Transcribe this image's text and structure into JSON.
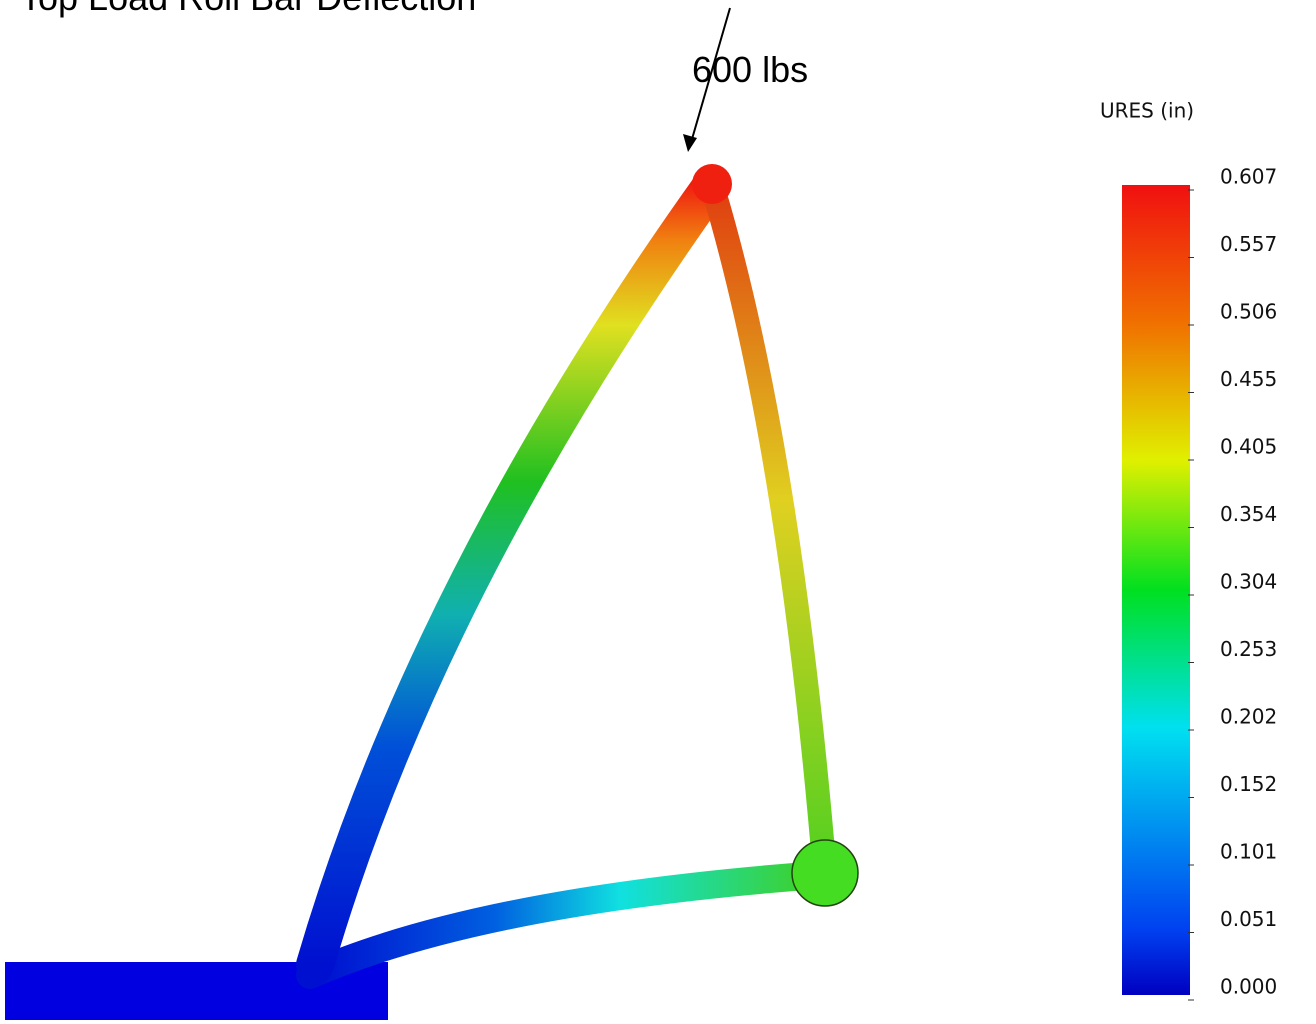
{
  "header": {
    "title": "Top Load Roll Bar Deflection"
  },
  "annotation": {
    "load": "600 lbs"
  },
  "legend": {
    "title": "URES (in)",
    "ticks": [
      "0.607",
      "0.557",
      "0.506",
      "0.455",
      "0.405",
      "0.354",
      "0.304",
      "0.253",
      "0.202",
      "0.152",
      "0.101",
      "0.051",
      "0.000"
    ]
  }
}
